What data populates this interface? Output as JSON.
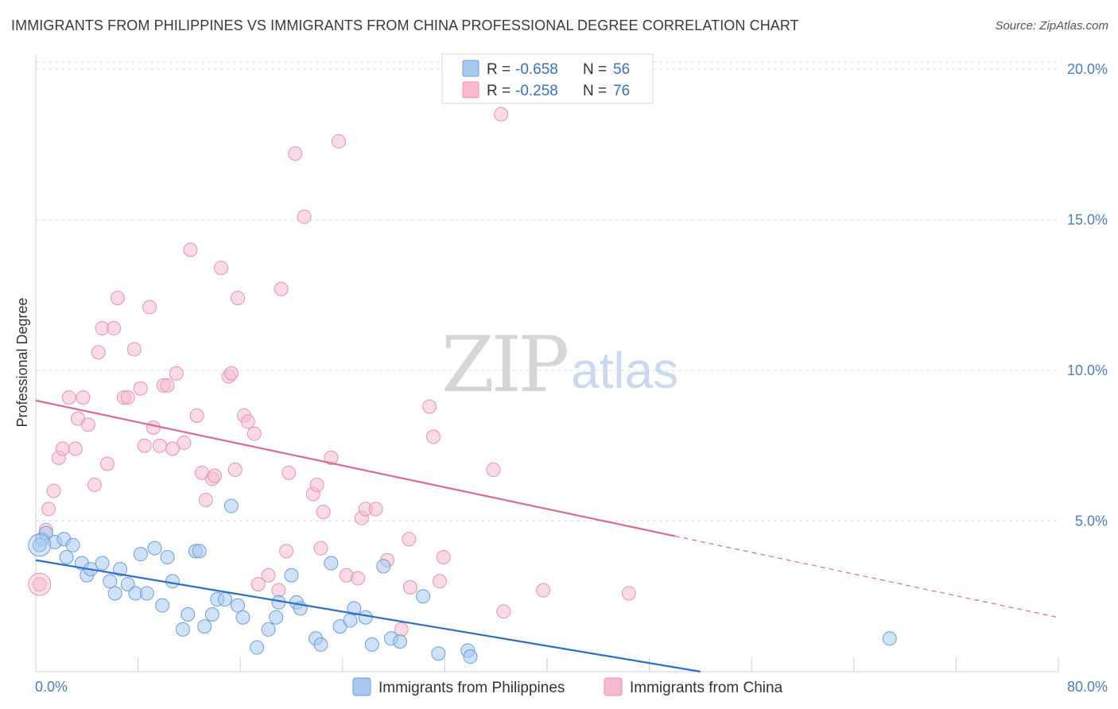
{
  "title": "IMMIGRANTS FROM PHILIPPINES VS IMMIGRANTS FROM CHINA PROFESSIONAL DEGREE CORRELATION CHART",
  "source": "Source: ZipAtlas.com",
  "watermark": {
    "zip": "ZIP",
    "atlas": "atlas"
  },
  "colors": {
    "philippines_fill": "#a8c8f0",
    "philippines_stroke": "#6a9fdc",
    "philippines_line": "#2a6fd0",
    "china_fill": "#f6bccd",
    "china_stroke": "#e893ad",
    "china_line": "#e0688f",
    "tick_text": "#4a7cc9",
    "grid": "#dddddd"
  },
  "legend": {
    "rows": [
      {
        "r_label": "R = ",
        "r_value": "-0.658",
        "n_label": "N = ",
        "n_value": "56"
      },
      {
        "r_label": "R = ",
        "r_value": "-0.258",
        "n_label": "N = ",
        "n_value": "76"
      }
    ]
  },
  "chart_data": {
    "type": "scatter",
    "xlabel": "",
    "ylabel": "Professional Degree",
    "xlim": [
      0,
      80
    ],
    "ylim": [
      0,
      20.5
    ],
    "x_tick_labels": [
      "0.0%",
      "80.0%"
    ],
    "y_ticks": [
      5,
      10,
      15,
      20
    ],
    "y_tick_labels": [
      "5.0%",
      "10.0%",
      "15.0%",
      "20.0%"
    ],
    "grid": true,
    "legend_position": "top-center",
    "series": [
      {
        "name": "Immigrants from Philippines",
        "r": -0.658,
        "n": 56,
        "trend": {
          "x0": 0,
          "y0": 3.7,
          "x1": 52,
          "y1": 0.0,
          "dashed_to": 52
        },
        "points": [
          [
            0.5,
            4.4
          ],
          [
            0.8,
            4.6
          ],
          [
            1.5,
            4.3
          ],
          [
            2.2,
            4.4
          ],
          [
            2.4,
            3.8
          ],
          [
            2.9,
            4.2
          ],
          [
            3.6,
            3.6
          ],
          [
            4.0,
            3.2
          ],
          [
            4.3,
            3.4
          ],
          [
            5.2,
            3.6
          ],
          [
            5.8,
            3.0
          ],
          [
            6.2,
            2.6
          ],
          [
            6.6,
            3.4
          ],
          [
            7.2,
            2.9
          ],
          [
            7.8,
            2.6
          ],
          [
            8.2,
            3.9
          ],
          [
            8.7,
            2.6
          ],
          [
            9.3,
            4.1
          ],
          [
            9.9,
            2.2
          ],
          [
            10.3,
            3.8
          ],
          [
            10.7,
            3.0
          ],
          [
            11.5,
            1.4
          ],
          [
            11.9,
            1.9
          ],
          [
            12.5,
            4.0
          ],
          [
            12.8,
            4.0
          ],
          [
            13.2,
            1.5
          ],
          [
            13.8,
            1.9
          ],
          [
            14.2,
            2.4
          ],
          [
            14.8,
            2.4
          ],
          [
            15.3,
            5.5
          ],
          [
            15.8,
            2.2
          ],
          [
            16.2,
            1.8
          ],
          [
            17.3,
            0.8
          ],
          [
            18.2,
            1.4
          ],
          [
            18.8,
            1.8
          ],
          [
            19.0,
            2.3
          ],
          [
            20.0,
            3.2
          ],
          [
            20.4,
            2.3
          ],
          [
            20.7,
            2.1
          ],
          [
            21.9,
            1.1
          ],
          [
            22.3,
            0.9
          ],
          [
            23.1,
            3.6
          ],
          [
            23.8,
            1.5
          ],
          [
            24.6,
            1.7
          ],
          [
            24.9,
            2.1
          ],
          [
            25.8,
            1.8
          ],
          [
            26.3,
            0.9
          ],
          [
            27.2,
            3.5
          ],
          [
            27.8,
            1.1
          ],
          [
            28.5,
            1.0
          ],
          [
            30.3,
            2.5
          ],
          [
            31.5,
            0.6
          ],
          [
            33.8,
            0.7
          ],
          [
            34.0,
            0.5
          ],
          [
            66.8,
            1.1
          ],
          [
            0.3,
            4.2
          ]
        ]
      },
      {
        "name": "Immigrants from China",
        "r": -0.258,
        "n": 76,
        "trend": {
          "x0": 0,
          "y0": 9.0,
          "x1": 50,
          "y1": 4.5,
          "dashed_to": 80,
          "y_end": 1.8
        },
        "points": [
          [
            0.3,
            2.9
          ],
          [
            0.8,
            4.7
          ],
          [
            1.0,
            5.4
          ],
          [
            1.4,
            6.0
          ],
          [
            1.8,
            7.1
          ],
          [
            2.1,
            7.4
          ],
          [
            2.6,
            9.1
          ],
          [
            3.1,
            7.4
          ],
          [
            3.3,
            8.4
          ],
          [
            3.7,
            9.1
          ],
          [
            4.1,
            8.2
          ],
          [
            4.6,
            6.2
          ],
          [
            4.9,
            10.6
          ],
          [
            5.2,
            11.4
          ],
          [
            5.6,
            6.9
          ],
          [
            6.1,
            11.4
          ],
          [
            6.4,
            12.4
          ],
          [
            6.9,
            9.1
          ],
          [
            7.2,
            9.1
          ],
          [
            7.7,
            10.7
          ],
          [
            8.2,
            9.4
          ],
          [
            8.5,
            7.5
          ],
          [
            8.9,
            12.1
          ],
          [
            9.2,
            8.1
          ],
          [
            9.7,
            7.5
          ],
          [
            10.0,
            9.5
          ],
          [
            10.3,
            9.5
          ],
          [
            10.7,
            7.4
          ],
          [
            11.0,
            9.9
          ],
          [
            11.6,
            7.6
          ],
          [
            12.1,
            14.0
          ],
          [
            12.6,
            8.5
          ],
          [
            13.0,
            6.6
          ],
          [
            13.3,
            5.7
          ],
          [
            13.8,
            6.4
          ],
          [
            14.0,
            6.5
          ],
          [
            14.5,
            13.4
          ],
          [
            15.1,
            9.8
          ],
          [
            15.3,
            9.9
          ],
          [
            15.6,
            6.7
          ],
          [
            15.8,
            12.4
          ],
          [
            16.3,
            8.5
          ],
          [
            16.6,
            8.3
          ],
          [
            17.1,
            7.9
          ],
          [
            17.4,
            2.9
          ],
          [
            18.2,
            3.2
          ],
          [
            19.0,
            2.7
          ],
          [
            19.2,
            12.7
          ],
          [
            19.6,
            4.0
          ],
          [
            19.8,
            6.6
          ],
          [
            20.3,
            17.2
          ],
          [
            21.0,
            15.1
          ],
          [
            21.7,
            5.9
          ],
          [
            22.0,
            6.2
          ],
          [
            22.3,
            4.1
          ],
          [
            22.5,
            5.3
          ],
          [
            23.1,
            7.1
          ],
          [
            23.7,
            17.6
          ],
          [
            24.3,
            3.2
          ],
          [
            25.2,
            3.1
          ],
          [
            25.5,
            5.1
          ],
          [
            25.8,
            5.4
          ],
          [
            26.6,
            5.4
          ],
          [
            27.5,
            3.7
          ],
          [
            28.6,
            1.4
          ],
          [
            29.2,
            4.4
          ],
          [
            29.3,
            2.8
          ],
          [
            30.8,
            8.8
          ],
          [
            31.1,
            7.8
          ],
          [
            31.6,
            3.0
          ],
          [
            31.9,
            3.8
          ],
          [
            35.8,
            6.7
          ],
          [
            36.4,
            18.5
          ],
          [
            36.6,
            2.0
          ],
          [
            39.7,
            2.7
          ],
          [
            46.4,
            2.6
          ]
        ]
      }
    ]
  },
  "bottom_legend": [
    "Immigrants from Philippines",
    "Immigrants from China"
  ]
}
